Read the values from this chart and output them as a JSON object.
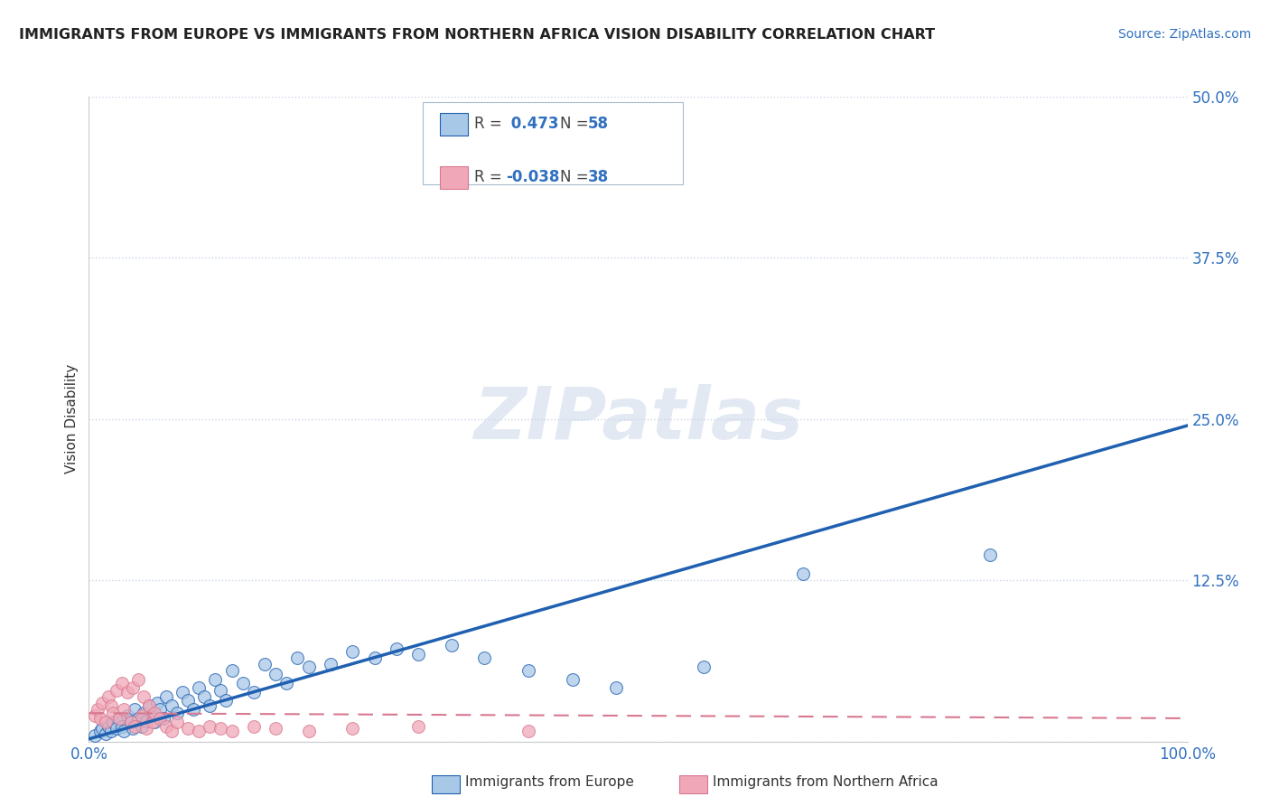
{
  "title": "IMMIGRANTS FROM EUROPE VS IMMIGRANTS FROM NORTHERN AFRICA VISION DISABILITY CORRELATION CHART",
  "source": "Source: ZipAtlas.com",
  "ylabel": "Vision Disability",
  "xlim": [
    0.0,
    1.0
  ],
  "ylim": [
    0.0,
    0.5
  ],
  "yticks": [
    0.0,
    0.125,
    0.25,
    0.375,
    0.5
  ],
  "ytick_labels": [
    "",
    "12.5%",
    "25.0%",
    "37.5%",
    "50.0%"
  ],
  "legend_label_europe": "Immigrants from Europe",
  "legend_label_africa": "Immigrants from Northern Africa",
  "color_europe": "#a8c8e8",
  "color_africa": "#f0a8b8",
  "line_color_europe": "#2060b0",
  "line_color_africa": "#d87890",
  "background_color": "#ffffff",
  "grid_color": "#c8d4e4",
  "europe_x": [
    0.005,
    0.01,
    0.012,
    0.015,
    0.018,
    0.02,
    0.022,
    0.025,
    0.028,
    0.03,
    0.032,
    0.035,
    0.038,
    0.04,
    0.042,
    0.045,
    0.048,
    0.05,
    0.052,
    0.055,
    0.058,
    0.06,
    0.062,
    0.065,
    0.068,
    0.07,
    0.075,
    0.08,
    0.085,
    0.09,
    0.095,
    0.1,
    0.105,
    0.11,
    0.115,
    0.12,
    0.125,
    0.13,
    0.14,
    0.15,
    0.16,
    0.17,
    0.18,
    0.19,
    0.2,
    0.22,
    0.24,
    0.26,
    0.28,
    0.3,
    0.33,
    0.36,
    0.4,
    0.44,
    0.48,
    0.56,
    0.65,
    0.82
  ],
  "europe_y": [
    0.005,
    0.008,
    0.01,
    0.006,
    0.012,
    0.008,
    0.015,
    0.01,
    0.018,
    0.012,
    0.008,
    0.02,
    0.015,
    0.01,
    0.025,
    0.018,
    0.012,
    0.022,
    0.016,
    0.028,
    0.02,
    0.015,
    0.03,
    0.025,
    0.018,
    0.035,
    0.028,
    0.022,
    0.038,
    0.032,
    0.025,
    0.042,
    0.035,
    0.028,
    0.048,
    0.04,
    0.032,
    0.055,
    0.045,
    0.038,
    0.06,
    0.052,
    0.045,
    0.065,
    0.058,
    0.06,
    0.07,
    0.065,
    0.072,
    0.068,
    0.075,
    0.065,
    0.055,
    0.048,
    0.042,
    0.058,
    0.13,
    0.145
  ],
  "africa_x": [
    0.005,
    0.008,
    0.01,
    0.012,
    0.015,
    0.018,
    0.02,
    0.022,
    0.025,
    0.028,
    0.03,
    0.032,
    0.035,
    0.038,
    0.04,
    0.042,
    0.045,
    0.048,
    0.05,
    0.052,
    0.055,
    0.058,
    0.06,
    0.065,
    0.07,
    0.075,
    0.08,
    0.09,
    0.1,
    0.11,
    0.12,
    0.13,
    0.15,
    0.17,
    0.2,
    0.24,
    0.3,
    0.4
  ],
  "africa_y": [
    0.02,
    0.025,
    0.018,
    0.03,
    0.015,
    0.035,
    0.028,
    0.022,
    0.04,
    0.018,
    0.045,
    0.025,
    0.038,
    0.015,
    0.042,
    0.012,
    0.048,
    0.02,
    0.035,
    0.01,
    0.028,
    0.015,
    0.022,
    0.018,
    0.012,
    0.008,
    0.015,
    0.01,
    0.008,
    0.012,
    0.01,
    0.008,
    0.012,
    0.01,
    0.008,
    0.01,
    0.012,
    0.008
  ],
  "eu_line_x0": 0.0,
  "eu_line_y0": 0.002,
  "eu_line_x1": 1.0,
  "eu_line_y1": 0.245,
  "af_line_x0": 0.0,
  "af_line_y0": 0.022,
  "af_line_x1": 1.0,
  "af_line_y1": 0.018
}
